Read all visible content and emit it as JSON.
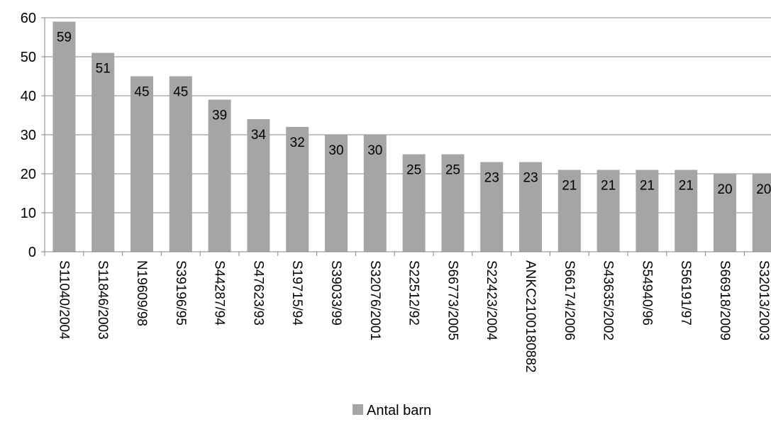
{
  "chart_data": {
    "type": "bar",
    "categories": [
      "S11040/2004",
      "S11846/2003",
      "N19609/98",
      "S39196/95",
      "S44287/94",
      "S47623/93",
      "S19715/94",
      "S39033/99",
      "S32076/2001",
      "S22512/92",
      "S66773/2005",
      "S22423/2004",
      "ANKC2100180882",
      "S66174/2006",
      "S43635/2002",
      "S54940/96",
      "S56191/97",
      "S66918/2009",
      "S32013/2003"
    ],
    "series": [
      {
        "name": "Antal barn",
        "values": [
          59,
          51,
          45,
          45,
          39,
          34,
          32,
          30,
          30,
          25,
          25,
          23,
          23,
          21,
          21,
          21,
          21,
          20,
          20
        ]
      }
    ],
    "ylim": [
      0,
      60
    ],
    "yticks": [
      0,
      10,
      20,
      30,
      40,
      50,
      60
    ],
    "grid": true,
    "legend_position": "bottom",
    "bar_color": "#a5a5a5",
    "data_labels": true
  }
}
